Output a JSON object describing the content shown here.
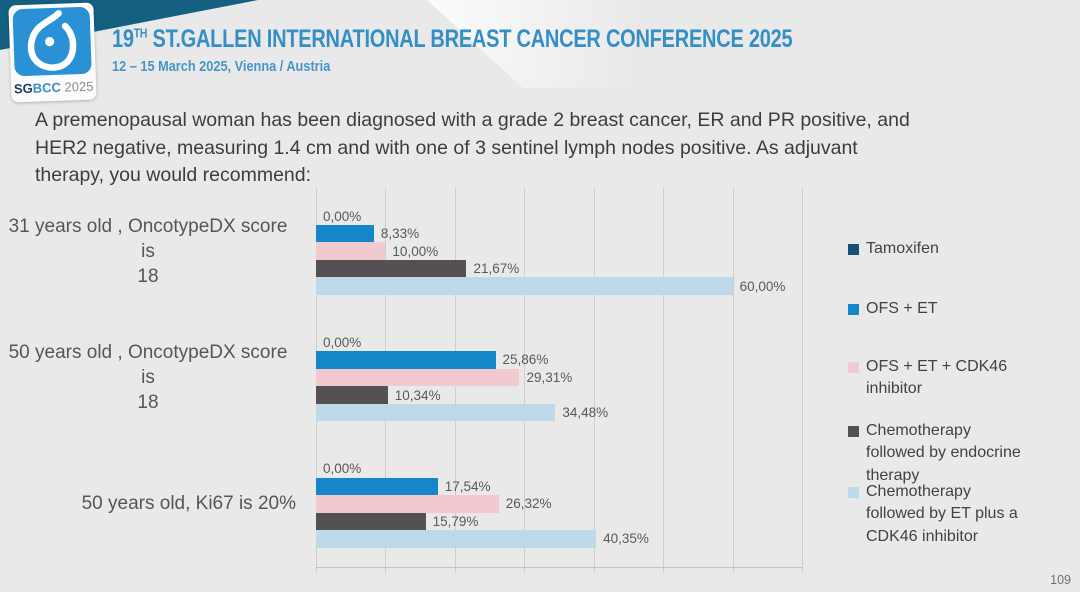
{
  "header": {
    "logo": {
      "sg": "SG",
      "bcc": "BCC",
      "year": " 2025"
    },
    "title_num": "19",
    "title_sup": "TH",
    "title_rest": " ST.GALLEN INTERNATIONAL BREAST CANCER CONFERENCE 2025",
    "subtitle": "12 – 15 March 2025, Vienna / Austria"
  },
  "question": "A premenopausal woman has been diagnosed with a grade 2 breast cancer, ER and PR positive, and\nHER2 negative, measuring 1.4 cm and with one of 3 sentinel lymph nodes positive. As adjuvant\ntherapy, you would recommend:",
  "chart_data": {
    "type": "bar",
    "orientation": "horizontal",
    "title": "",
    "xlabel": "",
    "ylabel": "",
    "xlim": [
      0,
      70
    ],
    "gridline_step": 10,
    "grid": true,
    "legend_position": "right",
    "value_format": "percent, comma decimal separator",
    "categories": [
      "31 years old , OncotypeDX score is\n18",
      "50 years old , OncotypeDX score is\n18",
      "50 years old, Ki67 is 20%"
    ],
    "series": [
      {
        "name": "Tamoxifen",
        "legend_label": "Tamoxifen",
        "color": "#174f78",
        "values": [
          0.0,
          0.0,
          0.0
        ],
        "labels": [
          "0,00%",
          "0,00%",
          "0,00%"
        ]
      },
      {
        "name": "OFS + ET",
        "legend_label": "OFS + ET",
        "color": "#1587c9",
        "values": [
          8.33,
          25.86,
          17.54
        ],
        "labels": [
          "8,33%",
          "25,86%",
          "17,54%"
        ]
      },
      {
        "name": "OFS + ET + CDK46 inhibitor",
        "legend_label": "OFS + ET + CDK46\ninhibitor",
        "color": "#f2c9ce",
        "values": [
          10.0,
          29.31,
          26.32
        ],
        "labels": [
          "10,00%",
          "29,31%",
          "26,32%"
        ]
      },
      {
        "name": "Chemotherapy followed by endocrine therapy",
        "legend_label": "Chemotherapy\nfollowed by endocrine\ntherapy",
        "color": "#555152",
        "values": [
          21.67,
          10.34,
          15.79
        ],
        "labels": [
          "21,67%",
          "10,34%",
          "15,79%"
        ]
      },
      {
        "name": "Chemotherapy followed by ET plus a CDK46 inhibitor",
        "legend_label": "Chemotherapy\nfollowed by ET plus a\nCDK46 inhibitor",
        "color": "#bed9ea",
        "values": [
          60.0,
          34.48,
          40.35
        ],
        "labels": [
          "60,00%",
          "34,48%",
          "40,35%"
        ]
      }
    ]
  },
  "footer": {
    "page_number": "109"
  },
  "colors": {
    "background": "#e9e9e9",
    "accent_teal": "#156080",
    "title_blue": "#338fc6",
    "logo_blue": "#2b91d5",
    "gridline": "#cdcdcd",
    "text_dark": "#3d3d3d",
    "value_label": "#595959"
  }
}
